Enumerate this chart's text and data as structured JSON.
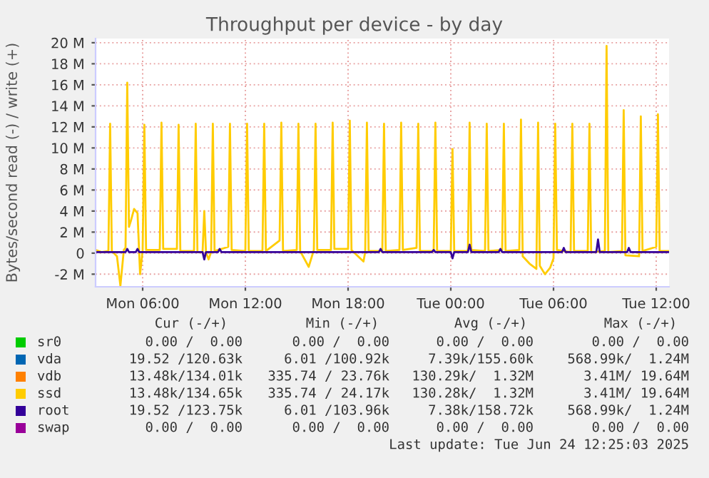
{
  "chart_data": {
    "type": "line",
    "title": "Throughput per device - by day",
    "ylabel": "Bytes/second read (-) / write (+)",
    "xlim": [
      "2025-06-23T03:15",
      "2025-06-24T12:45"
    ],
    "xticks": [
      {
        "value": "2025-06-23T06:00",
        "label": "Mon 06:00"
      },
      {
        "value": "2025-06-23T12:00",
        "label": "Mon 12:00"
      },
      {
        "value": "2025-06-23T18:00",
        "label": "Mon 18:00"
      },
      {
        "value": "2025-06-24T00:00",
        "label": "Tue 00:00"
      },
      {
        "value": "2025-06-24T06:00",
        "label": "Tue 06:00"
      },
      {
        "value": "2025-06-24T12:00",
        "label": "Tue 12:00"
      }
    ],
    "ylim": [
      -3.2,
      20.4
    ],
    "yticks": [
      {
        "value": -2,
        "label": "-2 M"
      },
      0,
      {
        "value": 2,
        "label": "2 M"
      },
      {
        "value": 4,
        "label": "4 M"
      },
      {
        "value": 6,
        "label": "6 M"
      },
      {
        "value": 8,
        "label": "8 M"
      },
      {
        "value": 10,
        "label": "10 M"
      },
      {
        "value": 12,
        "label": "12 M"
      },
      {
        "value": 14,
        "label": "14 M"
      },
      {
        "value": 16,
        "label": "16 M"
      },
      {
        "value": 18,
        "label": "18 M"
      },
      {
        "value": 20,
        "label": "20 M"
      }
    ],
    "grid": true,
    "legend": "bottom",
    "marker": "none",
    "line_style": "solid",
    "series": [
      {
        "name": "sr0",
        "color": "#00cc00"
      },
      {
        "name": "vda",
        "color": "#0066b3"
      },
      {
        "name": "vdb",
        "color": "#ff8000"
      },
      {
        "name": "ssd",
        "color": "#ffcc00",
        "x": [
          "2025-06-23T03:15",
          "2025-06-23T03:36",
          "2025-06-23T04:00",
          "2025-06-23T04:06",
          "2025-06-23T04:12",
          "2025-06-23T04:30",
          "2025-06-23T04:42",
          "2025-06-23T04:54",
          "2025-06-23T05:00",
          "2025-06-23T05:06",
          "2025-06-23T05:12",
          "2025-06-23T05:18",
          "2025-06-23T05:30",
          "2025-06-23T05:42",
          "2025-06-23T05:51",
          "2025-06-23T06:00",
          "2025-06-23T06:06",
          "2025-06-23T06:12",
          "2025-06-23T07:00",
          "2025-06-23T07:06",
          "2025-06-23T07:12",
          "2025-06-23T08:00",
          "2025-06-23T08:06",
          "2025-06-23T08:12",
          "2025-06-23T09:00",
          "2025-06-23T09:06",
          "2025-06-23T09:12",
          "2025-06-23T09:30",
          "2025-06-23T09:36",
          "2025-06-23T09:42",
          "2025-06-23T09:51",
          "2025-06-23T10:00",
          "2025-06-23T10:06",
          "2025-06-23T10:12",
          "2025-06-23T11:00",
          "2025-06-23T11:06",
          "2025-06-23T11:12",
          "2025-06-23T12:00",
          "2025-06-23T12:06",
          "2025-06-23T12:12",
          "2025-06-23T13:00",
          "2025-06-23T13:06",
          "2025-06-23T13:12",
          "2025-06-23T14:00",
          "2025-06-23T14:06",
          "2025-06-23T14:12",
          "2025-06-23T15:00",
          "2025-06-23T15:06",
          "2025-06-23T15:12",
          "2025-06-23T15:42",
          "2025-06-23T16:00",
          "2025-06-23T16:06",
          "2025-06-23T16:12",
          "2025-06-23T17:00",
          "2025-06-23T17:06",
          "2025-06-23T17:12",
          "2025-06-23T18:00",
          "2025-06-23T18:06",
          "2025-06-23T18:12",
          "2025-06-23T18:54",
          "2025-06-23T19:00",
          "2025-06-23T19:06",
          "2025-06-23T19:12",
          "2025-06-23T20:00",
          "2025-06-23T20:06",
          "2025-06-23T20:12",
          "2025-06-23T21:00",
          "2025-06-23T21:06",
          "2025-06-23T21:12",
          "2025-06-23T22:00",
          "2025-06-23T22:06",
          "2025-06-23T22:12",
          "2025-06-23T23:00",
          "2025-06-23T23:06",
          "2025-06-23T23:12",
          "2025-06-24T00:00",
          "2025-06-24T00:06",
          "2025-06-24T00:12",
          "2025-06-24T01:00",
          "2025-06-24T01:06",
          "2025-06-24T01:12",
          "2025-06-24T02:00",
          "2025-06-24T02:06",
          "2025-06-24T02:12",
          "2025-06-24T03:00",
          "2025-06-24T03:06",
          "2025-06-24T03:12",
          "2025-06-24T04:00",
          "2025-06-24T04:06",
          "2025-06-24T04:12",
          "2025-06-24T04:36",
          "2025-06-24T05:00",
          "2025-06-24T05:06",
          "2025-06-24T05:12",
          "2025-06-24T05:30",
          "2025-06-24T05:48",
          "2025-06-24T06:00",
          "2025-06-24T06:06",
          "2025-06-24T06:12",
          "2025-06-24T07:00",
          "2025-06-24T07:06",
          "2025-06-24T07:12",
          "2025-06-24T08:00",
          "2025-06-24T08:06",
          "2025-06-24T08:12",
          "2025-06-24T09:00",
          "2025-06-24T09:06",
          "2025-06-24T09:12",
          "2025-06-24T10:00",
          "2025-06-24T10:06",
          "2025-06-24T10:12",
          "2025-06-24T11:00",
          "2025-06-24T11:06",
          "2025-06-24T11:12",
          "2025-06-24T12:00",
          "2025-06-24T12:06",
          "2025-06-24T12:12",
          "2025-06-24T12:45"
        ],
        "values": [
          0.3,
          0.1,
          0.2,
          12.3,
          0.2,
          -0.3,
          -3.1,
          0.3,
          0.5,
          16.2,
          2.5,
          3.0,
          4.2,
          3.8,
          -2.0,
          0.3,
          12.2,
          0.3,
          0.3,
          12.4,
          0.4,
          0.4,
          12.2,
          0.2,
          0.2,
          12.3,
          0.1,
          0.1,
          4.0,
          0.1,
          -0.6,
          0.1,
          12.3,
          0.2,
          0.6,
          12.3,
          0.3,
          0.2,
          12.3,
          0.2,
          0.2,
          12.3,
          0.2,
          1.2,
          12.4,
          0.2,
          0.3,
          12.3,
          0.2,
          -1.3,
          0.3,
          12.3,
          0.3,
          0.3,
          12.4,
          0.4,
          0.4,
          12.6,
          0.3,
          -0.8,
          0.1,
          12.4,
          0.2,
          0.2,
          12.3,
          0.2,
          0.3,
          12.4,
          0.3,
          0.5,
          12.3,
          0.2,
          0.2,
          12.4,
          0.2,
          0.2,
          9.9,
          0.2,
          0.2,
          12.4,
          0.3,
          0.2,
          12.3,
          0.2,
          0.3,
          12.3,
          0.2,
          0.3,
          12.7,
          -0.3,
          -1.0,
          -1.5,
          12.4,
          -1.2,
          -2.0,
          -1.4,
          -0.5,
          12.3,
          0.3,
          0.1,
          12.3,
          0.2,
          0.2,
          12.3,
          0.1,
          0.2,
          19.7,
          0.1,
          0.2,
          13.6,
          -0.2,
          -0.3,
          13.0,
          0.2,
          0.6,
          13.2,
          0.2,
          0.2
        ]
      },
      {
        "name": "root",
        "color": "#330099",
        "x": [
          "2025-06-23T03:15",
          "2025-06-23T05:00",
          "2025-06-23T05:06",
          "2025-06-23T05:12",
          "2025-06-23T05:36",
          "2025-06-23T05:42",
          "2025-06-23T05:48",
          "2025-06-23T09:30",
          "2025-06-23T09:36",
          "2025-06-23T09:42",
          "2025-06-23T10:24",
          "2025-06-23T10:30",
          "2025-06-23T10:36",
          "2025-06-23T19:48",
          "2025-06-23T19:54",
          "2025-06-23T20:00",
          "2025-06-23T22:54",
          "2025-06-23T23:00",
          "2025-06-23T23:06",
          "2025-06-24T00:00",
          "2025-06-24T00:06",
          "2025-06-24T00:12",
          "2025-06-24T01:00",
          "2025-06-24T01:06",
          "2025-06-24T01:12",
          "2025-06-24T02:48",
          "2025-06-24T02:54",
          "2025-06-24T03:00",
          "2025-06-24T06:30",
          "2025-06-24T06:36",
          "2025-06-24T06:42",
          "2025-06-24T08:30",
          "2025-06-24T08:36",
          "2025-06-24T08:42",
          "2025-06-24T10:18",
          "2025-06-24T10:24",
          "2025-06-24T10:30",
          "2025-06-24T12:45"
        ],
        "values": [
          0.1,
          0.1,
          0.4,
          0.1,
          0.1,
          0.4,
          0.1,
          0.1,
          -0.6,
          0.1,
          0.1,
          0.4,
          0.1,
          0.1,
          0.4,
          0.1,
          0.1,
          0.3,
          0.1,
          0.1,
          -0.5,
          0.1,
          0.1,
          0.8,
          0.1,
          0.1,
          0.4,
          0.1,
          0.1,
          0.5,
          0.1,
          0.1,
          1.3,
          0.1,
          0.1,
          0.5,
          0.1,
          0.1
        ]
      },
      {
        "name": "swap",
        "color": "#990099"
      }
    ],
    "annotations": [
      "Cur (-/+)",
      "Min (-/+)",
      "Avg (-/+)",
      "Max (-/+)",
      "0.00 /  0.00",
      "0.00 /  0.00",
      "0.00 /  0.00",
      "0.00 /  0.00",
      "19.52 /120.63k",
      "6.01 /100.92k",
      "7.39k/155.60k",
      "568.99k/  1.24M",
      "13.48k/134.01k",
      "335.74 / 23.76k",
      "130.29k/  1.32M",
      "3.41M/ 19.64M",
      "13.48k/134.65k",
      "335.74 / 24.17k",
      "130.28k/  1.32M",
      "3.41M/ 19.64M",
      "19.52 /123.75k",
      "6.01 /103.96k",
      "7.38k/158.72k",
      "568.99k/  1.24M",
      "0.00 /  0.00",
      "0.00 /  0.00",
      "0.00 /  0.00",
      "0.00 /  0.00",
      "Last update: Tue Jun 24 12:25:03 2025"
    ]
  }
}
